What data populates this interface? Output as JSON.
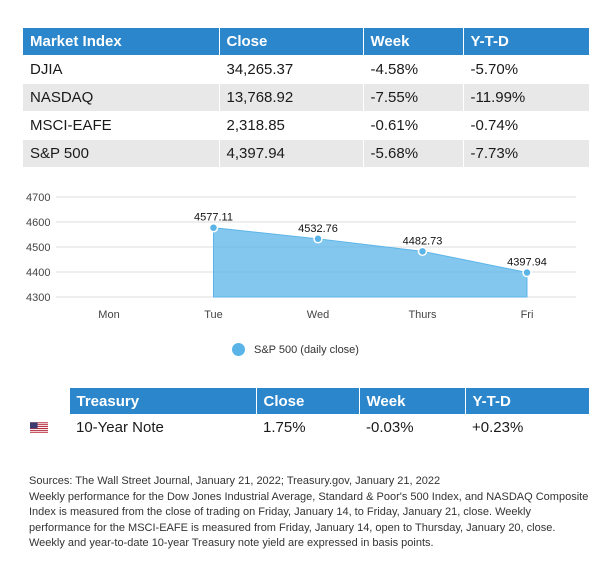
{
  "market_table": {
    "headers": [
      "Market Index",
      "Close",
      "Week",
      "Y-T-D"
    ],
    "rows": [
      {
        "index": "DJIA",
        "close": "34,265.37",
        "week": "-4.58%",
        "ytd": "-5.70%"
      },
      {
        "index": "NASDAQ",
        "close": "13,768.92",
        "week": "-7.55%",
        "ytd": "-11.99%"
      },
      {
        "index": "MSCI-EAFE",
        "close": "2,318.85",
        "week": "-0.61%",
        "ytd": "-0.74%"
      },
      {
        "index": "S&P 500",
        "close": "4,397.94",
        "week": "-5.68%",
        "ytd": "-7.73%"
      }
    ]
  },
  "chart_data": {
    "type": "area",
    "categories": [
      "Mon",
      "Tue",
      "Wed",
      "Thurs",
      "Fri"
    ],
    "series": [
      {
        "name": "S&P 500 (daily close)",
        "values": [
          null,
          4577.11,
          4532.76,
          4482.73,
          4397.94
        ],
        "labels": [
          "",
          "4577.11",
          "4532.76",
          "4482.73",
          "4397.94"
        ]
      }
    ],
    "yticks": [
      "4300",
      "4400",
      "4500",
      "4600",
      "4700"
    ],
    "ylim": [
      4300,
      4700
    ],
    "grid": true,
    "legend": "bottom",
    "color": "#5bb4e8"
  },
  "treasury_table": {
    "headers": [
      "",
      "Treasury",
      "Close",
      "Week",
      "Y-T-D"
    ],
    "rows": [
      {
        "flag": "us-flag-icon",
        "name": "10-Year Note",
        "close": "1.75%",
        "week": "-0.03%",
        "ytd": "+0.23%"
      }
    ]
  },
  "notes": [
    "Sources: The Wall Street Journal, January 21, 2022; Treasury.gov, January 21, 2022",
    "Weekly performance for the Dow Jones Industrial Average, Standard & Poor's 500 Index, and NASDAQ Composite Index is measured from the close of trading on Friday, January 14, to Friday, January 21, close. Weekly performance for the MSCI-EAFE is measured from Friday, January 14, open to Thursday, January 20, close. Weekly and year-to-date 10-year Treasury note yield are expressed in basis points."
  ],
  "colors": {
    "header_blue": "#2b86cb",
    "row_gray": "#e8e8e8",
    "area_blue": "#5bb4e8"
  }
}
